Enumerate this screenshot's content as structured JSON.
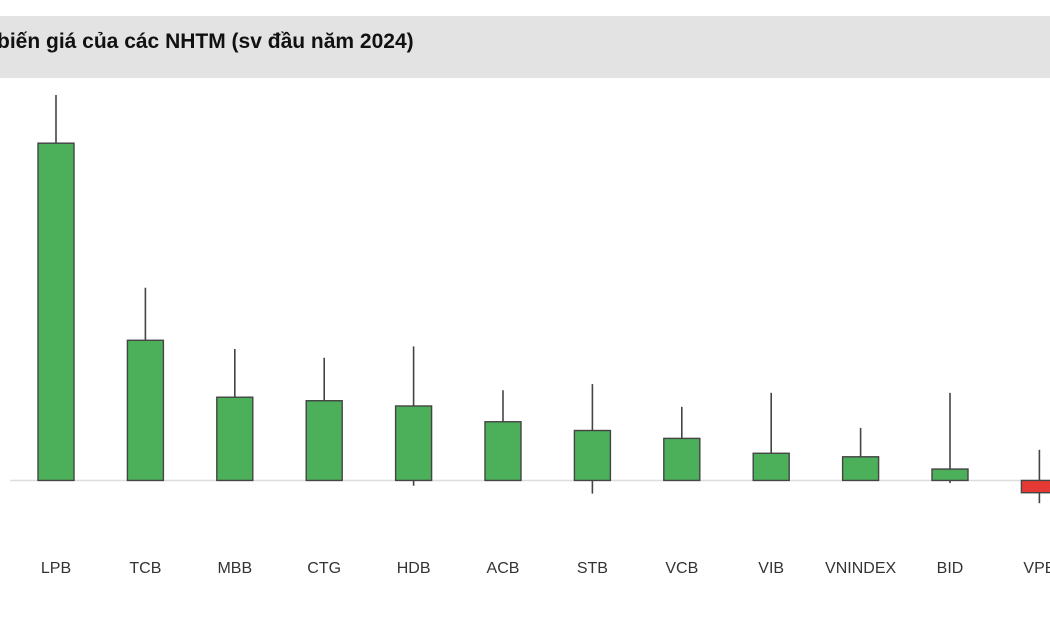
{
  "chart_data": {
    "type": "candlestick",
    "title": "biến giá của các NHTM (sv đầu năm 2024)",
    "xlabel": "",
    "ylabel": "",
    "ylim": [
      -6,
      44
    ],
    "baseline": 0,
    "grid": false,
    "legend": "none",
    "categories": [
      "LPB",
      "TCB",
      "MBB",
      "CTG",
      "HDB",
      "ACB",
      "STB",
      "VCB",
      "VIB",
      "VNINDEX",
      "BID",
      "VPB"
    ],
    "candles": [
      {
        "open": 0,
        "close": 38.5,
        "high": 44.0,
        "low": 0
      },
      {
        "open": 0,
        "close": 16.0,
        "high": 22.0,
        "low": 0
      },
      {
        "open": 0,
        "close": 9.5,
        "high": 15.0,
        "low": 0
      },
      {
        "open": 0,
        "close": 9.1,
        "high": 14.0,
        "low": 0
      },
      {
        "open": 0,
        "close": 8.5,
        "high": 15.3,
        "low": -0.6
      },
      {
        "open": 0,
        "close": 6.7,
        "high": 10.3,
        "low": 0
      },
      {
        "open": 0,
        "close": 5.7,
        "high": 11.0,
        "low": -1.5
      },
      {
        "open": 0,
        "close": 4.8,
        "high": 8.4,
        "low": 0
      },
      {
        "open": 0,
        "close": 3.1,
        "high": 10.0,
        "low": 0
      },
      {
        "open": 0,
        "close": 2.7,
        "high": 6.0,
        "low": 0
      },
      {
        "open": 0,
        "close": 1.3,
        "high": 10.0,
        "low": -0.3
      },
      {
        "open": 0,
        "close": -1.4,
        "high": 3.5,
        "low": -2.6
      }
    ],
    "colors": {
      "up": "#4caf5a",
      "down": "#e53935",
      "border": "#444444",
      "baseline": "#dddddd"
    }
  }
}
